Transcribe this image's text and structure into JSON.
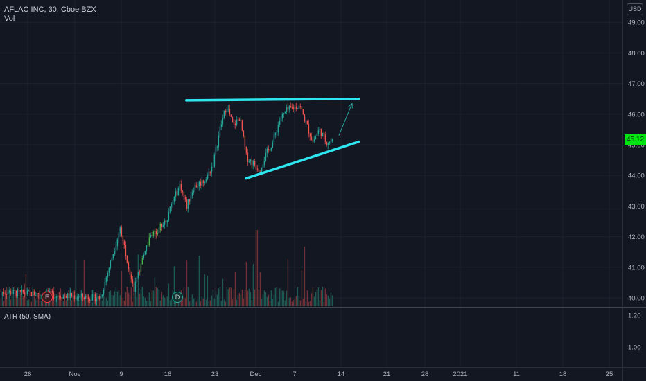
{
  "header": {
    "symbol_line": "AFLAC INC, 30, Cboe BZX",
    "volume_label": "Vol"
  },
  "indicator": {
    "label": "ATR (50, SMA)"
  },
  "currency_button": "USD",
  "last_price": "45.12",
  "events": {
    "earnings": "E",
    "dividend": "D"
  },
  "colors": {
    "background": "#131722",
    "up": "#26a69a",
    "down": "#ef5350",
    "up_highlight": "#4caf50",
    "trendline": "#2ee6f0",
    "price_badge": "#00e50f",
    "grid": "#1e222d",
    "text": "#b2b5be"
  },
  "chart_data": {
    "type": "candlestick",
    "title": "AFLAC INC, 30, Cboe BZX",
    "y_axis": {
      "ticks": [
        "49.00",
        "48.00",
        "47.00",
        "46.00",
        "45.00",
        "44.00",
        "43.00",
        "42.00",
        "41.00",
        "40.00"
      ],
      "range": [
        39.75,
        49.25
      ]
    },
    "atr_axis": {
      "ticks": [
        "1.20",
        "1.00"
      ]
    },
    "x_axis": {
      "ticks": [
        "26",
        "Nov",
        "9",
        "16",
        "23",
        "Dec",
        "7",
        "14",
        "21",
        "28",
        "2021",
        "11",
        "18",
        "25"
      ]
    },
    "anchors": [
      {
        "t": "Oct 22",
        "price": 40.2
      },
      {
        "t": "Nov 6",
        "price": 40.0
      },
      {
        "t": "Nov 9",
        "price": 42.3
      },
      {
        "t": "Nov 10",
        "price": 41.3
      },
      {
        "t": "Nov 11",
        "price": 40.2
      },
      {
        "t": "Nov 12",
        "price": 41.0
      },
      {
        "t": "Nov 13",
        "price": 41.8
      },
      {
        "t": "Nov 16",
        "price": 42.6
      },
      {
        "t": "Nov 17",
        "price": 43.2
      },
      {
        "t": "Nov 18",
        "price": 43.7
      },
      {
        "t": "Nov 19",
        "price": 43.0
      },
      {
        "t": "Nov 20",
        "price": 43.6
      },
      {
        "t": "Nov 22",
        "price": 43.9
      },
      {
        "t": "Nov 23",
        "price": 44.4
      },
      {
        "t": "Nov 24",
        "price": 45.5
      },
      {
        "t": "Nov 25",
        "price": 46.3
      },
      {
        "t": "Nov 26",
        "price": 45.6
      },
      {
        "t": "Nov 27",
        "price": 45.9
      },
      {
        "t": "Nov 28",
        "price": 44.6
      },
      {
        "t": "Nov 30",
        "price": 44.2
      },
      {
        "t": "Dec 1",
        "price": 44.7
      },
      {
        "t": "Dec 2",
        "price": 45.1
      },
      {
        "t": "Dec 3",
        "price": 45.8
      },
      {
        "t": "Dec 4",
        "price": 46.1
      },
      {
        "t": "Dec 6",
        "price": 46.3
      },
      {
        "t": "Dec 7",
        "price": 45.7
      },
      {
        "t": "Dec 8",
        "price": 45.1
      },
      {
        "t": "Dec 9",
        "price": 45.5
      },
      {
        "t": "Dec 10",
        "price": 45.1
      },
      {
        "t": "Dec 11",
        "price": 45.12
      }
    ],
    "drawings": {
      "resistance": {
        "from": {
          "t": "Nov 19",
          "price": 46.45
        },
        "to": {
          "t": "Dec 15",
          "price": 46.5
        }
      },
      "support": {
        "from": {
          "t": "Nov 28",
          "price": 43.9
        },
        "to": {
          "t": "Dec 15",
          "price": 45.1
        }
      },
      "projection_arrow": {
        "from": {
          "t": "Dec 12",
          "price": 45.3
        },
        "to": {
          "t": "Dec 14",
          "price": 46.35
        }
      }
    },
    "grid": true
  }
}
